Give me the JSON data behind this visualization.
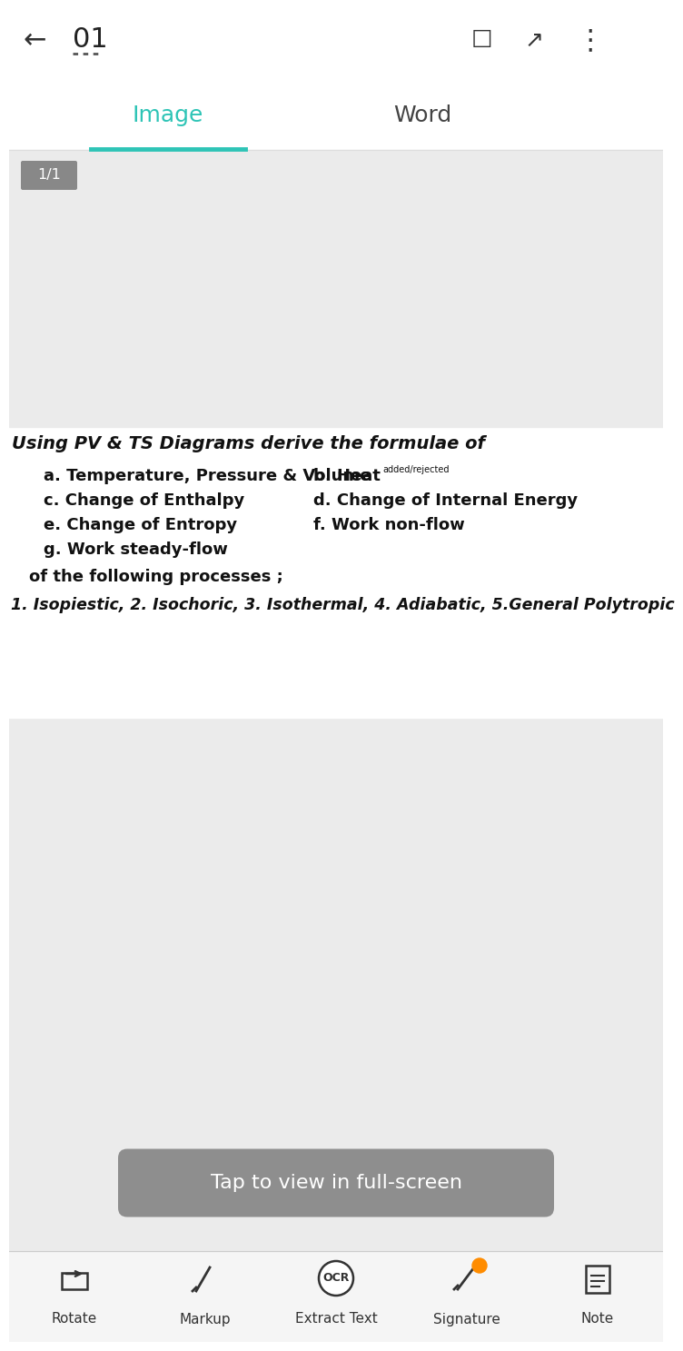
{
  "bg_white": "#ffffff",
  "bg_light_gray": "#f2f2f2",
  "bg_gray": "#e8e8e8",
  "teal_color": "#2ec4b6",
  "title_text": "01",
  "tab_image": "Image",
  "tab_word": "Word",
  "page_indicator": "1/1",
  "page_ind_bg": "#888888",
  "heading": "Using PV & TS Diagrams derive the formulae of",
  "items_left": [
    "a. Temperature, Pressure & Volume",
    "c. Change of Enthalpy",
    "e. Change of Entropy",
    "g. Work steady-flow"
  ],
  "items_right_main": [
    "b. Heat",
    "d. Change of Internal Energy",
    "f. Work non-flow"
  ],
  "heat_superscript": "added/rejected",
  "of_line": "of the following processes ;",
  "processes_line": "1. Isopiestic, 2. Isochoric, 3. Isothermal, 4. Adiabatic, 5.General Polytropic",
  "tap_button_text": "Tap to view in full-screen",
  "tap_button_bg": "#7a7a7a",
  "bottom_icons": [
    "Rotate",
    "Markup",
    "Extract Text",
    "Signature",
    "Note"
  ],
  "toolbar_bg": "#f8f8f8"
}
